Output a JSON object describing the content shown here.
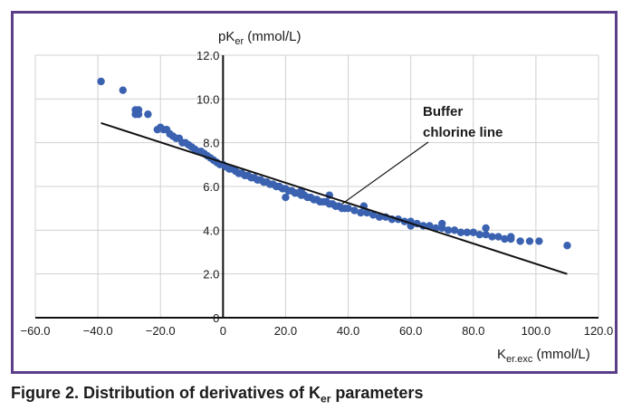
{
  "caption": {
    "prefix": "Figure 2. Distribution of derivatives of K",
    "sub": "er",
    "suffix": " parameters"
  },
  "chart_data": {
    "type": "scatter",
    "title": "",
    "xlabel": {
      "main": "K",
      "sub": "er.exc",
      "unit": " (mmol/L)"
    },
    "ylabel": {
      "main": "pK",
      "sub": "er",
      "unit": " (mmol/L)"
    },
    "xlim": [
      -60,
      120
    ],
    "ylim": [
      0,
      12
    ],
    "x_ticks": [
      -60,
      -40,
      -20,
      0,
      20,
      40,
      60,
      80,
      100,
      120
    ],
    "x_tick_labels": [
      "−60.0",
      "−40.0",
      "−20.0",
      "0",
      "20.0",
      "40.0",
      "60.0",
      "80.0",
      "100.0",
      "120.0"
    ],
    "y_ticks": [
      0,
      2,
      4,
      6,
      8,
      10,
      12
    ],
    "y_tick_labels": [
      "0",
      "2.0",
      "4.0",
      "6.0",
      "8.0",
      "10.0",
      "12.0"
    ],
    "grid": true,
    "colors": {
      "points": "#3a62b0",
      "line": "#111111",
      "grid": "#d0d0d0",
      "frame": "#5a3e89"
    },
    "annotation": {
      "lines": [
        "Buffer",
        "chlorine line"
      ],
      "points_to": [
        38,
        5.2
      ]
    },
    "series": [
      {
        "kind": "points",
        "points": [
          [
            -39,
            10.8
          ],
          [
            -32,
            10.4
          ],
          [
            -28,
            9.5
          ],
          [
            -28,
            9.3
          ],
          [
            -27,
            9.5
          ],
          [
            -27,
            9.3
          ],
          [
            -24,
            9.3
          ],
          [
            -21,
            8.6
          ],
          [
            -20,
            8.7
          ],
          [
            -19,
            8.6
          ],
          [
            -18,
            8.6
          ],
          [
            -17,
            8.4
          ],
          [
            -16,
            8.3
          ],
          [
            -15,
            8.2
          ],
          [
            -14,
            8.2
          ],
          [
            -13,
            8.0
          ],
          [
            -12,
            8.0
          ],
          [
            -11,
            7.9
          ],
          [
            -10,
            7.8
          ],
          [
            -9,
            7.7
          ],
          [
            -8,
            7.6
          ],
          [
            -7,
            7.6
          ],
          [
            -6,
            7.5
          ],
          [
            -5,
            7.4
          ],
          [
            -4,
            7.3
          ],
          [
            -3,
            7.2
          ],
          [
            -2,
            7.1
          ],
          [
            -1,
            7.0
          ],
          [
            0,
            7.0
          ],
          [
            1,
            6.9
          ],
          [
            2,
            6.8
          ],
          [
            3,
            6.8
          ],
          [
            4,
            6.7
          ],
          [
            5,
            6.6
          ],
          [
            6,
            6.6
          ],
          [
            7,
            6.5
          ],
          [
            8,
            6.5
          ],
          [
            9,
            6.4
          ],
          [
            10,
            6.4
          ],
          [
            11,
            6.3
          ],
          [
            12,
            6.3
          ],
          [
            13,
            6.2
          ],
          [
            14,
            6.2
          ],
          [
            15,
            6.1
          ],
          [
            16,
            6.1
          ],
          [
            17,
            6.0
          ],
          [
            18,
            6.0
          ],
          [
            19,
            5.9
          ],
          [
            20,
            5.9
          ],
          [
            21,
            5.8
          ],
          [
            22,
            5.8
          ],
          [
            23,
            5.7
          ],
          [
            24,
            5.7
          ],
          [
            25,
            5.6
          ],
          [
            26,
            5.6
          ],
          [
            27,
            5.5
          ],
          [
            28,
            5.5
          ],
          [
            29,
            5.4
          ],
          [
            30,
            5.4
          ],
          [
            31,
            5.3
          ],
          [
            32,
            5.3
          ],
          [
            33,
            5.3
          ],
          [
            34,
            5.2
          ],
          [
            35,
            5.2
          ],
          [
            36,
            5.1
          ],
          [
            37,
            5.1
          ],
          [
            38,
            5.0
          ],
          [
            39,
            5.0
          ],
          [
            40,
            5.0
          ],
          [
            42,
            4.9
          ],
          [
            44,
            4.8
          ],
          [
            46,
            4.8
          ],
          [
            48,
            4.7
          ],
          [
            50,
            4.6
          ],
          [
            52,
            4.6
          ],
          [
            54,
            4.5
          ],
          [
            56,
            4.5
          ],
          [
            58,
            4.4
          ],
          [
            60,
            4.4
          ],
          [
            62,
            4.3
          ],
          [
            64,
            4.2
          ],
          [
            66,
            4.2
          ],
          [
            68,
            4.1
          ],
          [
            70,
            4.1
          ],
          [
            72,
            4.0
          ],
          [
            74,
            4.0
          ],
          [
            76,
            3.9
          ],
          [
            78,
            3.9
          ],
          [
            80,
            3.9
          ],
          [
            82,
            3.8
          ],
          [
            84,
            3.8
          ],
          [
            86,
            3.7
          ],
          [
            88,
            3.7
          ],
          [
            90,
            3.6
          ],
          [
            92,
            3.6
          ],
          [
            95,
            3.5
          ],
          [
            98,
            3.5
          ],
          [
            101,
            3.5
          ],
          [
            110,
            3.3
          ],
          [
            20,
            5.5
          ],
          [
            34,
            5.6
          ],
          [
            70,
            4.3
          ],
          [
            84,
            4.1
          ],
          [
            92,
            3.7
          ],
          [
            60,
            4.2
          ],
          [
            45,
            5.1
          ],
          [
            25,
            5.8
          ]
        ]
      },
      {
        "kind": "line",
        "name": "Buffer chlorine line",
        "points": [
          [
            -39,
            8.9
          ],
          [
            110,
            2.0
          ]
        ]
      }
    ]
  }
}
